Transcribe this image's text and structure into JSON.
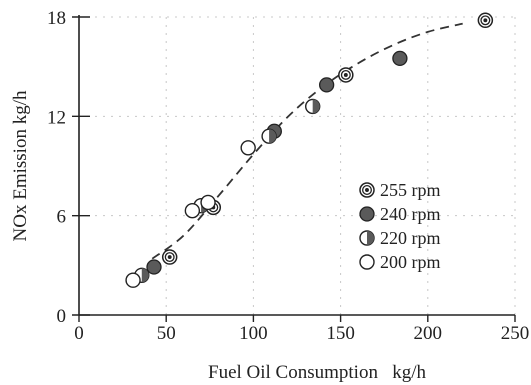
{
  "chart_data": {
    "type": "scatter",
    "xlabel": "Fuel Oil Consumption   kg/h",
    "ylabel": "NOx Emission kg/h",
    "xlim": [
      0,
      250
    ],
    "ylim": [
      0,
      18
    ],
    "xticks": [
      0,
      50,
      100,
      150,
      200,
      250
    ],
    "yticks": [
      0,
      6,
      12,
      18
    ],
    "x_tick_labels": [
      "0",
      "50",
      "100",
      "150",
      "200",
      "250"
    ],
    "y_tick_labels": [
      "0",
      "6",
      "12",
      "18"
    ],
    "grid": true,
    "legend_position": "right",
    "series": [
      {
        "name": "255 rpm",
        "marker": "double-circle",
        "points": [
          {
            "x": 52,
            "y": 3.5
          },
          {
            "x": 77,
            "y": 6.5
          },
          {
            "x": 153,
            "y": 14.5
          },
          {
            "x": 233,
            "y": 17.8
          }
        ]
      },
      {
        "name": "240 rpm",
        "marker": "filled-circle",
        "points": [
          {
            "x": 43,
            "y": 2.9
          },
          {
            "x": 112,
            "y": 11.1
          },
          {
            "x": 142,
            "y": 13.9
          },
          {
            "x": 184,
            "y": 15.5
          }
        ]
      },
      {
        "name": "220 rpm",
        "marker": "half-filled-circle",
        "points": [
          {
            "x": 36,
            "y": 2.4
          },
          {
            "x": 70,
            "y": 6.6
          },
          {
            "x": 109,
            "y": 10.8
          },
          {
            "x": 134,
            "y": 12.6
          }
        ]
      },
      {
        "name": "200 rpm",
        "marker": "open-circle",
        "points": [
          {
            "x": 31,
            "y": 2.1
          },
          {
            "x": 65,
            "y": 6.3
          },
          {
            "x": 74,
            "y": 6.8
          },
          {
            "x": 97,
            "y": 10.1
          }
        ]
      }
    ],
    "fit_curve": {
      "style": "dashed",
      "points": [
        {
          "x": 42,
          "y": 3.4
        },
        {
          "x": 60,
          "y": 4.8
        },
        {
          "x": 80,
          "y": 7.2
        },
        {
          "x": 100,
          "y": 9.7
        },
        {
          "x": 120,
          "y": 12.0
        },
        {
          "x": 140,
          "y": 13.8
        },
        {
          "x": 160,
          "y": 15.2
        },
        {
          "x": 180,
          "y": 16.3
        },
        {
          "x": 200,
          "y": 17.1
        },
        {
          "x": 220,
          "y": 17.6
        }
      ]
    },
    "colors": {
      "ink": "#222222",
      "marker_fill": "#5a5a5a",
      "grid": "#c8c8c8"
    }
  }
}
